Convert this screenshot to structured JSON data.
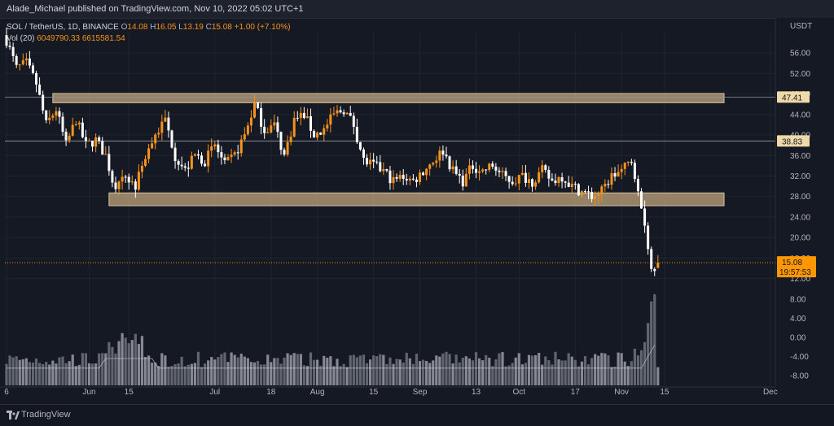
{
  "header": {
    "publisher_line": "Alade_Michael published on TradingView.com, Nov 10, 2022 05:02 UTC+1"
  },
  "legend": {
    "symbol": "SOL / TetherUS, 1D, BINANCE",
    "open_label": "O",
    "open": "14.08",
    "high_label": "H",
    "high": "16.05",
    "low_label": "L",
    "low": "13.19",
    "close_label": "C",
    "close": "15.08",
    "change": "+1.00 (+7.10%)",
    "vol_label": "Vol (20)",
    "vol_value": "6049790.33",
    "vol_ma": "6615581.54"
  },
  "footer": {
    "brand": "TradingView"
  },
  "colors": {
    "background": "#151924",
    "up_candle": "#f7931a",
    "down_candle": "#ffffff",
    "zone_fill": "#c8aa80",
    "price_tag": "#ff9800"
  },
  "chart_data": {
    "type": "candlestick",
    "symbol": "SOL / TetherUS",
    "timeframe": "1D",
    "exchange": "BINANCE",
    "currency_label": "USDT",
    "price_axis_ticks": [
      "56.00",
      "52.00",
      "48.00",
      "44.00",
      "40.00",
      "36.00",
      "32.00",
      "28.00",
      "24.00",
      "20.00",
      "16.00",
      "12.00"
    ],
    "volume_axis_ticks": [
      "8.00",
      "4.00",
      "0.00",
      "-4.00",
      "-8.00"
    ],
    "price_ylim": [
      10.5,
      60.0
    ],
    "volume_ylim": [
      -10.0,
      10.0
    ],
    "x_ticks": [
      "6",
      "Jun",
      "15",
      "Jul",
      "18",
      "Aug",
      "15",
      "Sep",
      "13",
      "Oct",
      "17",
      "Nov",
      "15",
      "Dec"
    ],
    "x_tick_days": [
      0,
      25,
      37,
      63,
      80,
      94,
      111,
      125,
      142,
      155,
      172,
      186,
      199,
      231
    ],
    "horizontal_levels": [
      {
        "value": 47.41,
        "label": "47.41"
      },
      {
        "value": 38.83,
        "label": "38.83"
      }
    ],
    "current_price": {
      "value": 15.08,
      "label": "15.08",
      "countdown": "19:57:53"
    },
    "zones": [
      {
        "x_start": 14,
        "x_end": 217,
        "y_low": 46.3,
        "y_high": 48.1
      },
      {
        "x_start": 31,
        "x_end": 217,
        "y_low": 26.2,
        "y_high": 28.7
      }
    ],
    "close_path": [
      [
        0,
        58.5
      ],
      [
        3,
        53
      ],
      [
        6,
        54
      ],
      [
        9,
        50
      ],
      [
        12,
        42
      ],
      [
        15,
        45
      ],
      [
        18,
        38
      ],
      [
        21,
        43
      ],
      [
        24,
        38
      ],
      [
        27,
        39
      ],
      [
        30,
        36
      ],
      [
        33,
        29
      ],
      [
        36,
        32
      ],
      [
        39,
        30
      ],
      [
        42,
        36
      ],
      [
        45,
        40
      ],
      [
        48,
        43
      ],
      [
        51,
        36
      ],
      [
        54,
        33
      ],
      [
        57,
        36
      ],
      [
        60,
        35
      ],
      [
        63,
        38
      ],
      [
        66,
        34
      ],
      [
        69,
        36
      ],
      [
        72,
        40
      ],
      [
        75,
        46
      ],
      [
        78,
        41
      ],
      [
        81,
        42
      ],
      [
        84,
        36
      ],
      [
        87,
        43
      ],
      [
        90,
        44
      ],
      [
        93,
        40
      ],
      [
        96,
        41
      ],
      [
        99,
        44
      ],
      [
        102,
        45
      ],
      [
        105,
        42
      ],
      [
        108,
        35
      ],
      [
        111,
        34
      ],
      [
        114,
        33
      ],
      [
        117,
        31
      ],
      [
        120,
        32
      ],
      [
        123,
        31
      ],
      [
        126,
        33
      ],
      [
        129,
        35
      ],
      [
        132,
        37
      ],
      [
        135,
        33
      ],
      [
        138,
        31
      ],
      [
        141,
        34
      ],
      [
        144,
        33
      ],
      [
        147,
        34
      ],
      [
        150,
        32
      ],
      [
        153,
        31
      ],
      [
        156,
        32
      ],
      [
        159,
        31
      ],
      [
        162,
        33
      ],
      [
        165,
        31
      ],
      [
        168,
        32
      ],
      [
        171,
        30
      ],
      [
        174,
        29
      ],
      [
        177,
        28
      ],
      [
        180,
        29
      ],
      [
        183,
        32
      ],
      [
        186,
        33
      ],
      [
        189,
        35
      ],
      [
        191,
        30
      ],
      [
        193,
        23
      ],
      [
        195,
        14
      ],
      [
        197,
        15.08
      ]
    ],
    "volume_note": "volume bars with 20-period moving average; spike to about 9.0 near Nov 8"
  }
}
